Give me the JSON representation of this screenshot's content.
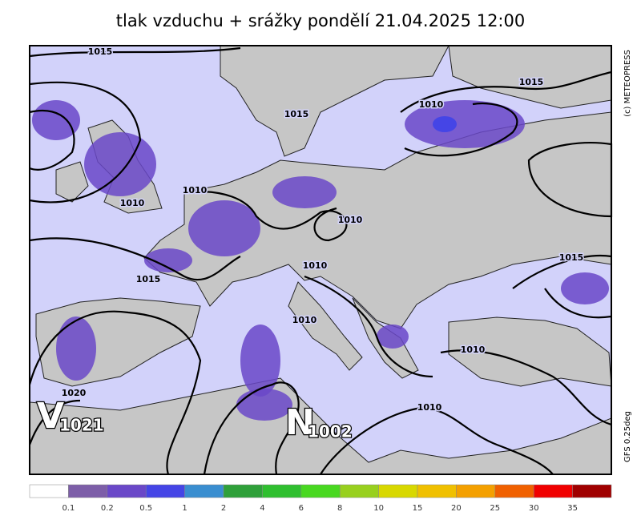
{
  "title": "tlak vzduchu + srážky pondělí 21.04.2025 12:00",
  "copyright": "(c) METEOPRESS",
  "model": "GFS 0.25deg",
  "isobar_labels": [
    "1015",
    "1015",
    "1010",
    "1015",
    "1010",
    "1010",
    "1010",
    "1010",
    "1015",
    "1015",
    "1010",
    "1010",
    "1010",
    "1020"
  ],
  "centers": [
    {
      "letter": "V",
      "value": "1021"
    },
    {
      "letter": "N",
      "value": "1002"
    }
  ],
  "legend": {
    "colors": [
      "#ffffff",
      "#7d5ea8",
      "#6a48c8",
      "#4545e6",
      "#3a8ed0",
      "#2fa03a",
      "#2fbf2f",
      "#48d820",
      "#98d01e",
      "#d8d800",
      "#f0c000",
      "#f4a000",
      "#f06000",
      "#f00000",
      "#a00000"
    ],
    "labels": [
      "0.1",
      "0.2",
      "0.5",
      "1",
      "2",
      "4",
      "6",
      "8",
      "10",
      "15",
      "20",
      "25",
      "30",
      "35"
    ]
  }
}
